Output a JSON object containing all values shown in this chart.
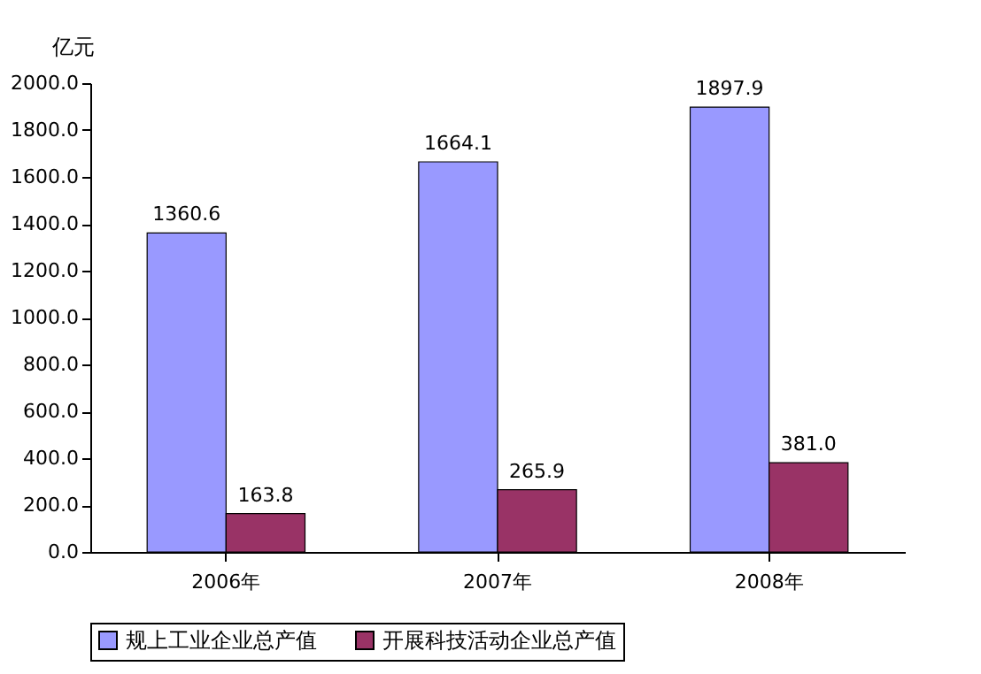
{
  "chart_data": {
    "type": "bar",
    "ylabel": "亿元",
    "categories": [
      "2006年",
      "2007年",
      "2008年"
    ],
    "series": [
      {
        "name": "规上工业企业总产值",
        "color": "#9999ff",
        "values": [
          1360.6,
          1664.1,
          1897.9
        ],
        "value_labels": [
          "1360.6",
          "1664.1",
          "1897.9"
        ]
      },
      {
        "name": "开展科技活动企业总产值",
        "color": "#993366",
        "values": [
          163.8,
          265.9,
          381.0
        ],
        "value_labels": [
          "163.8",
          "265.9",
          "381.0"
        ]
      }
    ],
    "ylim": [
      0,
      2000
    ],
    "yticks": [
      {
        "value": 0,
        "label": "0.0"
      },
      {
        "value": 200,
        "label": "200.0"
      },
      {
        "value": 400,
        "label": "400.0"
      },
      {
        "value": 600,
        "label": "600.0"
      },
      {
        "value": 800,
        "label": "800.0"
      },
      {
        "value": 1000,
        "label": "1000.0"
      },
      {
        "value": 1200,
        "label": "1200.0"
      },
      {
        "value": 1400,
        "label": "1400.0"
      },
      {
        "value": 1600,
        "label": "1600.0"
      },
      {
        "value": 1800,
        "label": "1800.0"
      },
      {
        "value": 2000,
        "label": "2000.0"
      }
    ],
    "grid": false,
    "legend": "bottom"
  }
}
